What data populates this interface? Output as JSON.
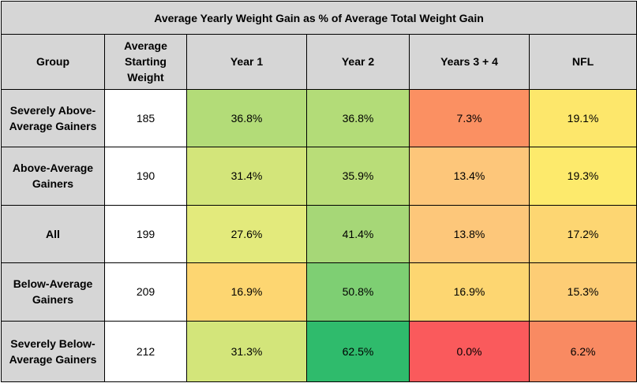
{
  "chart_data": {
    "type": "heatmap",
    "title": "Average Yearly Weight Gain as % of Average Total Weight Gain",
    "headers": {
      "group": "Group",
      "starting_weight": "Average Starting Weight",
      "columns": [
        "Year 1",
        "Year 2",
        "Years 3 + 4",
        "NFL"
      ]
    },
    "rows": [
      {
        "group": "Severely Above-Average Gainers",
        "starting_weight": "185",
        "labels": [
          "36.8%",
          "36.8%",
          "7.3%",
          "19.1%"
        ],
        "values": [
          36.8,
          36.8,
          7.3,
          19.1
        ],
        "colors": [
          "#b3dc78",
          "#b3dc78",
          "#fb9062",
          "#fde76b"
        ]
      },
      {
        "group": "Above-Average Gainers",
        "starting_weight": "190",
        "labels": [
          "31.4%",
          "35.9%",
          "13.4%",
          "19.3%"
        ],
        "values": [
          31.4,
          35.9,
          13.4,
          19.3
        ],
        "colors": [
          "#d3e57a",
          "#b9dd78",
          "#fdc67a",
          "#fdea6c"
        ]
      },
      {
        "group": "All",
        "starting_weight": "199",
        "labels": [
          "27.6%",
          "41.4%",
          "13.8%",
          "17.2%"
        ],
        "values": [
          27.6,
          41.4,
          13.8,
          17.2
        ],
        "colors": [
          "#e3ea7c",
          "#a6d777",
          "#fdc77a",
          "#fdd672"
        ]
      },
      {
        "group": "Below-Average Gainers",
        "starting_weight": "209",
        "labels": [
          "16.9%",
          "50.8%",
          "16.9%",
          "15.3%"
        ],
        "values": [
          16.9,
          50.8,
          16.9,
          15.3
        ],
        "colors": [
          "#fdd671",
          "#7ecf73",
          "#fdd671",
          "#fdcd75"
        ]
      },
      {
        "group": "Severely Below-Average Gainers",
        "starting_weight": "212",
        "labels": [
          "31.3%",
          "62.5%",
          "0.0%",
          "6.2%"
        ],
        "values": [
          31.3,
          62.5,
          0.0,
          6.2
        ],
        "colors": [
          "#d3e57a",
          "#2fbb6c",
          "#fa5a5c",
          "#f98a62"
        ]
      }
    ]
  }
}
